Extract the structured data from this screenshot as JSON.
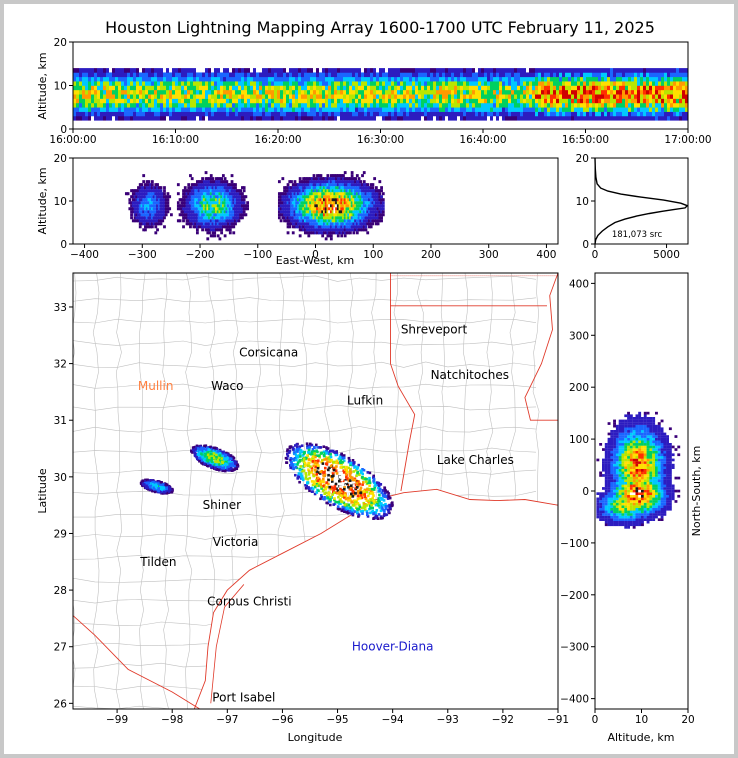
{
  "title": "Houston Lightning Mapping Array 1600-1700 UTC February 11, 2025",
  "colors": {
    "density": [
      "#3a0078",
      "#2c1cc0",
      "#1a66ff",
      "#00c8ff",
      "#00d060",
      "#b8e600",
      "#ffe000",
      "#ff9a00",
      "#ff3000",
      "#d00000",
      "#1a1a1a",
      "#ffffff"
    ],
    "border_state": "#e03a2a",
    "county_lines": "#c0c0c0",
    "city_black": "#000000",
    "city_orange": "#ff8040",
    "city_blue": "#1a1acc"
  },
  "chart_data": [
    {
      "id": "time-height",
      "type": "heatmap",
      "title": "",
      "xlabel": "",
      "ylabel": "Altitude, km",
      "xticks": [
        "16:00:00",
        "16:10:00",
        "16:20:00",
        "16:30:00",
        "16:40:00",
        "16:50:00",
        "17:00:00"
      ],
      "xlim_minutes": [
        0,
        60
      ],
      "yticks": [
        "0",
        "10",
        "20"
      ],
      "ylim": [
        0,
        20
      ],
      "series": [
        {
          "t_min": 0,
          "t_max": 45,
          "alt_center": 8,
          "intensity": 0.7
        },
        {
          "t_min": 45,
          "t_max": 60,
          "alt_center": 8,
          "intensity": 0.95
        }
      ]
    },
    {
      "id": "ew-altitude",
      "type": "heatmap",
      "xlabel": "East-West, km",
      "ylabel": "Altitude, km",
      "xticks": [
        "−400",
        "−300",
        "−200",
        "−100",
        "0",
        "100",
        "200",
        "300",
        "400"
      ],
      "xlim": [
        -420,
        420
      ],
      "yticks": [
        "0",
        "10",
        "20"
      ],
      "ylim": [
        0,
        20
      ],
      "clusters": [
        {
          "x": -290,
          "alt": 9,
          "width": 40,
          "intensity": 0.35
        },
        {
          "x": -180,
          "alt": 9,
          "width": 60,
          "intensity": 0.6
        },
        {
          "x": 25,
          "alt": 9,
          "width": 90,
          "intensity": 1.0
        }
      ]
    },
    {
      "id": "altitude-histogram",
      "type": "line",
      "xticks": [
        "0",
        "5000"
      ],
      "xlim": [
        0,
        6500
      ],
      "yticks": [
        "0",
        "10",
        "20"
      ],
      "ylim": [
        0,
        20
      ],
      "annotation": "181,073 src",
      "x": [
        0,
        50,
        200,
        500,
        900,
        1400,
        2100,
        2900,
        3800,
        4700,
        5500,
        6300,
        6450,
        6000,
        4800,
        3200,
        1800,
        900,
        400,
        150,
        60,
        20,
        0
      ],
      "y": [
        0,
        1,
        2,
        3,
        4,
        5,
        5.8,
        6.5,
        7.1,
        7.6,
        8.0,
        8.4,
        8.9,
        9.5,
        10.2,
        10.9,
        11.6,
        12.3,
        13.0,
        14.0,
        15.5,
        17.5,
        20
      ]
    },
    {
      "id": "plan-view",
      "type": "heatmap",
      "xlabel": "Longitude",
      "ylabel": "Latitude",
      "xticks": [
        "−99",
        "−98",
        "−97",
        "−96",
        "−95",
        "−94",
        "−93",
        "−92",
        "−91"
      ],
      "xlim": [
        -99.8,
        -91
      ],
      "yticks": [
        "26",
        "27",
        "28",
        "29",
        "30",
        "31",
        "32",
        "33"
      ],
      "ylim": [
        25.9,
        33.6
      ],
      "cities": [
        {
          "name": "Shreveport",
          "lon": -93.25,
          "lat": 32.6,
          "color": "black"
        },
        {
          "name": "Corsicana",
          "lon": -96.25,
          "lat": 32.2,
          "color": "black"
        },
        {
          "name": "Mullin",
          "lon": -98.3,
          "lat": 31.6,
          "color": "orange"
        },
        {
          "name": "Waco",
          "lon": -97.0,
          "lat": 31.6,
          "color": "black"
        },
        {
          "name": "Natchitoches",
          "lon": -92.6,
          "lat": 31.8,
          "color": "black"
        },
        {
          "name": "Lufkin",
          "lon": -94.5,
          "lat": 31.35,
          "color": "black"
        },
        {
          "name": "Lake Charles",
          "lon": -92.5,
          "lat": 30.3,
          "color": "black"
        },
        {
          "name": "Shiner",
          "lon": -97.1,
          "lat": 29.5,
          "color": "black"
        },
        {
          "name": "Victoria",
          "lon": -96.85,
          "lat": 28.85,
          "color": "black"
        },
        {
          "name": "Tilden",
          "lon": -98.25,
          "lat": 28.5,
          "color": "black"
        },
        {
          "name": "Corpus Christi",
          "lon": -96.6,
          "lat": 27.8,
          "color": "black"
        },
        {
          "name": "Hoover-Diana",
          "lon": -94.0,
          "lat": 27.0,
          "color": "blue"
        },
        {
          "name": "Port Isabel",
          "lon": -96.7,
          "lat": 26.1,
          "color": "black"
        }
      ],
      "clusters": [
        {
          "lon": -95.0,
          "lat": 29.95,
          "rx": 1.1,
          "ry": 0.45,
          "angle": -30,
          "intensity": 1.0
        },
        {
          "lon": -97.25,
          "lat": 30.35,
          "rx": 0.45,
          "ry": 0.18,
          "angle": -20,
          "intensity": 0.55
        },
        {
          "lon": -98.3,
          "lat": 29.85,
          "rx": 0.3,
          "ry": 0.1,
          "angle": -15,
          "intensity": 0.35
        }
      ]
    },
    {
      "id": "ns-altitude",
      "type": "heatmap",
      "xlabel": "Altitude, km",
      "ylabel": "North-South, km",
      "xticks": [
        "0",
        "10",
        "20"
      ],
      "xlim": [
        0,
        20
      ],
      "yticks": [
        "−400",
        "−300",
        "−200",
        "−100",
        "0",
        "100",
        "200",
        "300",
        "400"
      ],
      "ylim": [
        -420,
        420
      ],
      "clusters": [
        {
          "alt": 9,
          "y": 50,
          "h": 70,
          "intensity": 0.85
        },
        {
          "alt": 9,
          "y": -5,
          "h": 40,
          "intensity": 1.0
        },
        {
          "alt": 6,
          "y": -30,
          "h": 30,
          "intensity": 0.6
        }
      ]
    }
  ]
}
